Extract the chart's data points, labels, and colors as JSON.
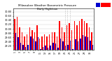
{
  "title": "Milwaukee Weather Barometric Pressure",
  "subtitle": "Daily High/Low",
  "high_color": "#ff0000",
  "low_color": "#0000cc",
  "bg_color": "#ffffff",
  "grid_color": "#cccccc",
  "ylim": [
    29.0,
    30.95
  ],
  "yticks": [
    29.2,
    29.4,
    29.6,
    29.8,
    30.0,
    30.2,
    30.4,
    30.6,
    30.8
  ],
  "dotted_indices": [
    20,
    21,
    22
  ],
  "highs": [
    30.45,
    30.55,
    30.05,
    29.85,
    29.65,
    29.75,
    30.05,
    29.95,
    29.85,
    30.15,
    29.55,
    29.65,
    29.75,
    29.65,
    29.75,
    29.85,
    29.85,
    29.65,
    30.35,
    30.05,
    29.85,
    30.15,
    30.25,
    29.95,
    30.35,
    30.15,
    30.35,
    30.45,
    30.35,
    30.25,
    30.05,
    29.85
  ],
  "lows": [
    29.8,
    29.6,
    29.35,
    29.25,
    29.15,
    29.25,
    29.65,
    29.55,
    29.4,
    29.6,
    29.05,
    29.15,
    29.2,
    29.1,
    29.2,
    29.35,
    29.3,
    29.1,
    29.55,
    29.4,
    29.2,
    29.25,
    29.45,
    29.05,
    29.5,
    29.4,
    29.55,
    29.7,
    29.65,
    29.6,
    29.45,
    29.25
  ],
  "xlabels": [
    "1",
    "",
    "3",
    "",
    "5",
    "",
    "7",
    "",
    "9",
    "",
    "11",
    "",
    "13",
    "",
    "15",
    "",
    "17",
    "",
    "19",
    "",
    "21",
    "",
    "23",
    "",
    "25",
    "",
    "27",
    "",
    "29",
    "",
    "31",
    ""
  ]
}
